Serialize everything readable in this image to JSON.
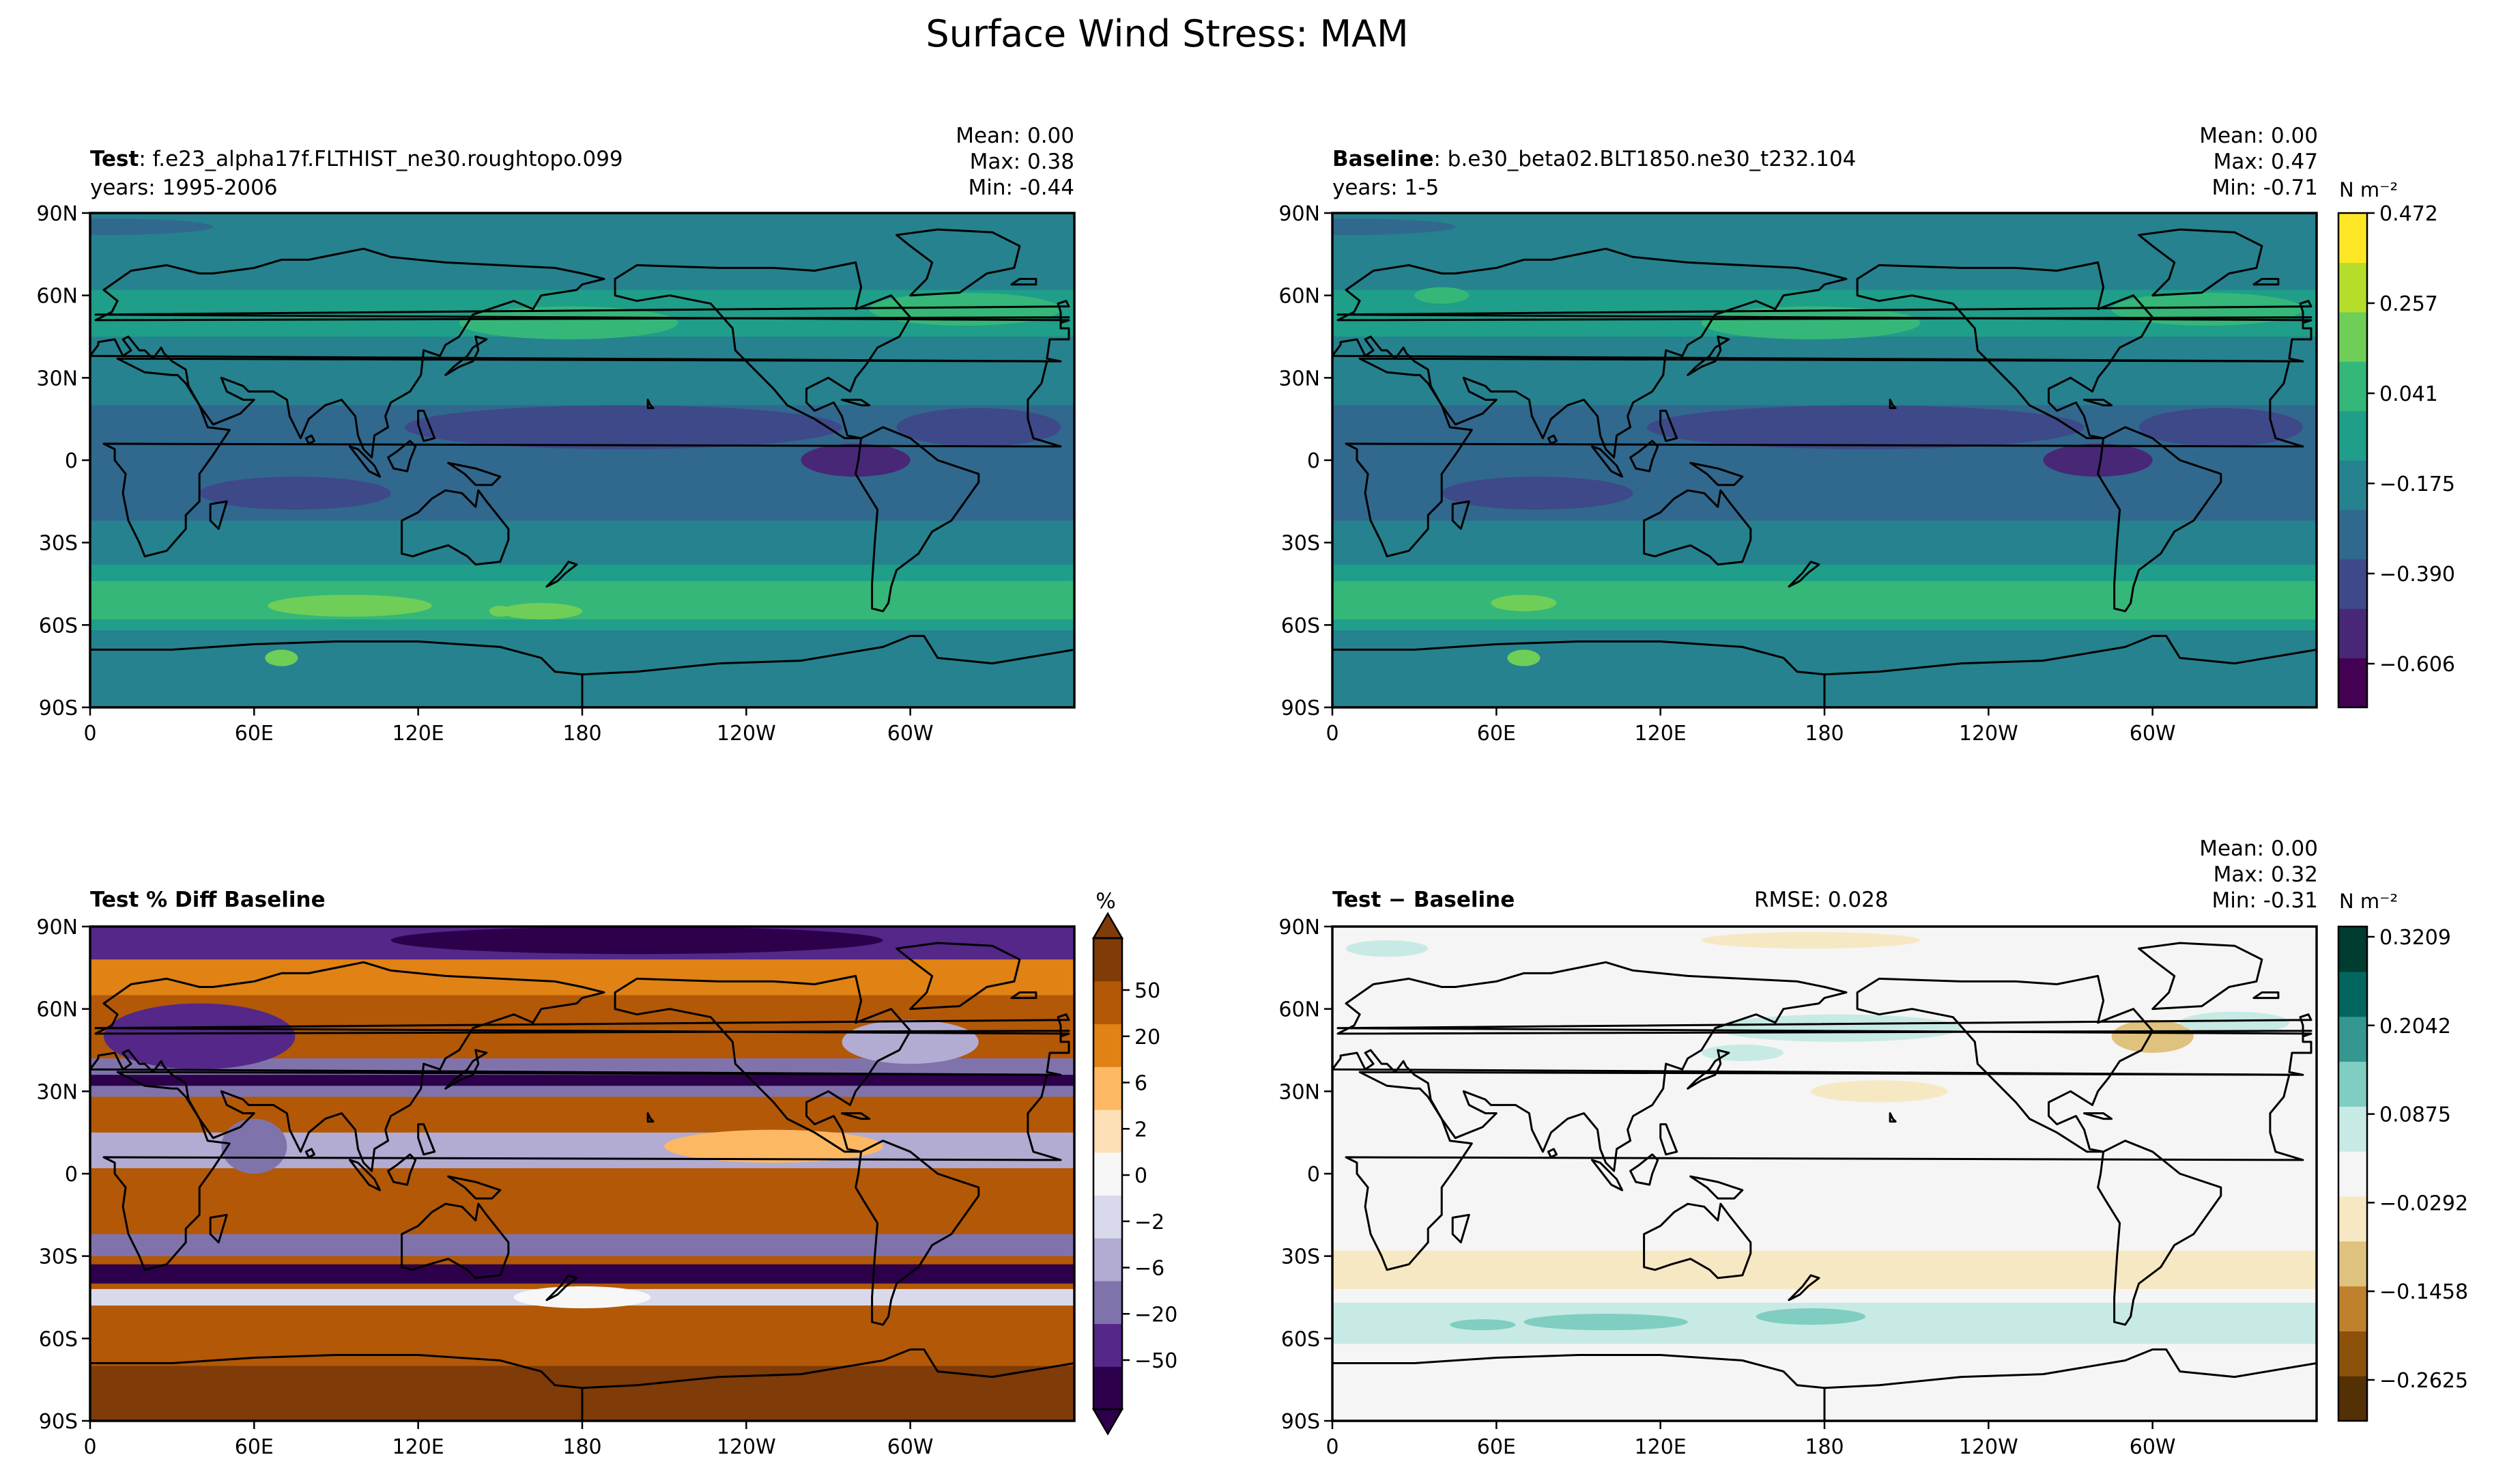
{
  "suptitle": "Surface Wind Stress: MAM",
  "lat_ticks": [
    "90N",
    "60N",
    "30N",
    "0",
    "30S",
    "60S",
    "90S"
  ],
  "lon_ticks": [
    "0",
    "60E",
    "120E",
    "180",
    "120W",
    "60W"
  ],
  "colors": {
    "viridis": [
      "#440154",
      "#482777",
      "#3e4989",
      "#31688e",
      "#26828e",
      "#1f9e89",
      "#35b779",
      "#6ece58",
      "#b5de2b",
      "#fde725"
    ],
    "puor": [
      "#2d004b",
      "#542788",
      "#8073ac",
      "#b2abd2",
      "#d8daeb",
      "#f7f7f7",
      "#fee0b6",
      "#fdb863",
      "#e08214",
      "#b35806",
      "#7f3b08"
    ],
    "brbg": [
      "#543005",
      "#8c510a",
      "#bf812d",
      "#dfc27d",
      "#f6e8c3",
      "#f5f5f5",
      "#c7eae5",
      "#80cdc1",
      "#35978f",
      "#01665e",
      "#003c30"
    ]
  },
  "chart_data": [
    {
      "type": "heatmap",
      "panel": "test",
      "title_bold": "Test",
      "title_rest": ": f.e23_alpha17f.FLTHIST_ne30.roughtopo.099",
      "subtitle": "years: 1995-2006",
      "stats": {
        "mean": "Mean:  0.00",
        "max": "Max:  0.38",
        "min": "Min: -0.44"
      },
      "xlim": [
        0,
        360
      ],
      "ylim": [
        -90,
        90
      ],
      "zonal_mean_profile": {
        "lat": [
          90,
          70,
          55,
          40,
          25,
          10,
          0,
          -10,
          -25,
          -40,
          -50,
          -55,
          -65,
          -75,
          -90
        ],
        "value": [
          0.04,
          0.04,
          0.1,
          0.1,
          0.04,
          -0.04,
          -0.06,
          -0.04,
          -0.06,
          0.1,
          0.22,
          0.22,
          0.12,
          0.04,
          0.0
        ]
      }
    },
    {
      "type": "heatmap",
      "panel": "baseline",
      "title_bold": "Baseline",
      "title_rest": ": b.e30_beta02.BLT1850.ne30_t232.104",
      "subtitle": "years: 1-5",
      "stats": {
        "mean": "Mean:  0.00",
        "max": "Max:  0.47",
        "min": "Min: -0.71"
      },
      "xlim": [
        0,
        360
      ],
      "ylim": [
        -90,
        90
      ],
      "colorbar": {
        "unit": "N m⁻²",
        "ticks": [
          "0.472",
          "0.257",
          "0.041",
          "−0.175",
          "−0.390",
          "−0.606"
        ],
        "levels": 10,
        "cmap": "viridis"
      }
    },
    {
      "type": "heatmap",
      "panel": "pct-diff",
      "title_bold": "Test % Diff Baseline",
      "xlim": [
        0,
        360
      ],
      "ylim": [
        -90,
        90
      ],
      "colorbar": {
        "unit": "%",
        "ticks": [
          "50",
          "20",
          "6",
          "2",
          "0",
          "−2",
          "−6",
          "−20",
          "−50"
        ],
        "levels": 11,
        "cmap": "puor",
        "extend": "both"
      }
    },
    {
      "type": "heatmap",
      "panel": "diff",
      "title_bold": "Test − Baseline",
      "rmse": "RMSE: 0.028",
      "stats": {
        "mean": "Mean:  0.00",
        "max": "Max:  0.32",
        "min": "Min: -0.31"
      },
      "xlim": [
        0,
        360
      ],
      "ylim": [
        -90,
        90
      ],
      "colorbar": {
        "unit": "N m⁻²",
        "ticks": [
          "0.3209",
          "0.2042",
          "0.0875",
          "−0.0292",
          "−0.1458",
          "−0.2625"
        ],
        "levels": 11,
        "cmap": "brbg"
      }
    }
  ]
}
